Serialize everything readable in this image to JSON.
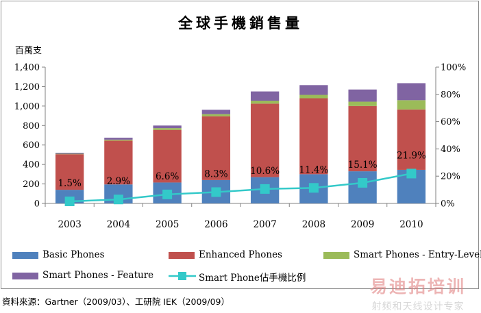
{
  "title": "全球手機銷售量",
  "y_unit": "百萬支",
  "source": "資料來源：Gartner（2009/03）、工研院 IEK（2009/09）",
  "watermark": {
    "line1": "易迪拓培训",
    "line2": "射频和天线设计专家"
  },
  "chart_data": {
    "type": "bar",
    "stacked": true,
    "categories": [
      "2003",
      "2004",
      "2005",
      "2006",
      "2007",
      "2008",
      "2009",
      "2010"
    ],
    "series": [
      {
        "name": "Basic Phones",
        "color": "#4f81bd",
        "values": [
          140,
          195,
          215,
          240,
          270,
          300,
          330,
          345
        ]
      },
      {
        "name": "Enhanced Phones",
        "color": "#c0504d",
        "values": [
          365,
          450,
          540,
          655,
          755,
          780,
          670,
          620
        ]
      },
      {
        "name": "Smart Phones - Entry-Level",
        "color": "#9bbb59",
        "values": [
          5,
          10,
          18,
          22,
          30,
          35,
          45,
          95
        ]
      },
      {
        "name": "Smart Phones - Feature",
        "color": "#8064a2",
        "values": [
          10,
          20,
          27,
          45,
          95,
          100,
          125,
          175
        ]
      }
    ],
    "line_series": {
      "name": "Smart Phone佔手機比例",
      "color": "#33c9c9",
      "axis": "right",
      "values": [
        1.5,
        2.9,
        6.6,
        8.3,
        10.6,
        11.4,
        15.1,
        21.9
      ],
      "labels": [
        "1.5%",
        "2.9%",
        "6.6%",
        "8.3%",
        "10.6%",
        "11.4%",
        "15.1%",
        "21.9%"
      ]
    },
    "y_left": {
      "min": 0,
      "max": 1400,
      "step": 200,
      "tick_labels": [
        "0",
        "200",
        "400",
        "600",
        "800",
        "1,000",
        "1,200",
        "1,400"
      ]
    },
    "y_right": {
      "min": 0,
      "max": 100,
      "step": 20,
      "tick_labels": [
        "0%",
        "20%",
        "40%",
        "60%",
        "80%",
        "100%"
      ]
    },
    "grid": false,
    "legend_position": "bottom"
  }
}
